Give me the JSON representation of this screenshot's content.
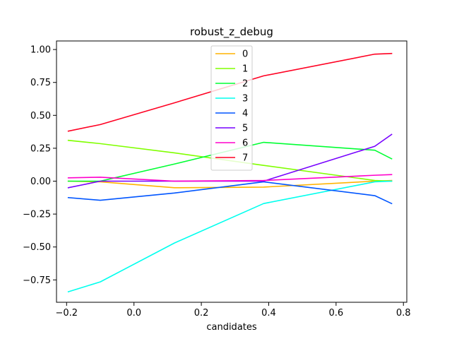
{
  "chart_data": {
    "type": "line",
    "title": "robust_z_debug",
    "xlabel": "candidates",
    "ylabel": "",
    "xlim": [
      -0.23,
      0.81
    ],
    "ylim": [
      -0.92,
      1.065
    ],
    "xticks": [
      -0.2,
      0.0,
      0.2,
      0.4,
      0.6,
      0.8
    ],
    "xtick_labels": [
      "−0.2",
      "0.0",
      "0.2",
      "0.4",
      "0.6",
      "0.8"
    ],
    "yticks": [
      -0.75,
      -0.5,
      -0.25,
      0.0,
      0.25,
      0.5,
      0.75,
      1.0
    ],
    "ytick_labels": [
      "−0.75",
      "−0.50",
      "−0.25",
      "0.00",
      "0.25",
      "0.50",
      "0.75",
      "1.00"
    ],
    "legend_position": "upper center",
    "x": [
      -0.195,
      -0.1,
      0.12,
      0.385,
      0.715,
      0.765
    ],
    "series": [
      {
        "name": "0",
        "color": "#ffb300",
        "values": [
          0.0,
          -0.005,
          -0.05,
          -0.045,
          0.0,
          0.005
        ]
      },
      {
        "name": "1",
        "color": "#80ff00",
        "values": [
          0.31,
          0.285,
          0.215,
          0.12,
          0.005,
          0.0
        ]
      },
      {
        "name": "2",
        "color": "#00ff33",
        "values": [
          0.0,
          0.0,
          0.13,
          0.295,
          0.235,
          0.17
        ]
      },
      {
        "name": "3",
        "color": "#00ffee",
        "values": [
          -0.84,
          -0.765,
          -0.47,
          -0.17,
          -0.005,
          0.0
        ]
      },
      {
        "name": "4",
        "color": "#0055ff",
        "values": [
          -0.125,
          -0.145,
          -0.09,
          -0.005,
          -0.11,
          -0.17
        ]
      },
      {
        "name": "5",
        "color": "#7700ff",
        "values": [
          -0.05,
          0.0,
          0.0,
          0.0,
          0.265,
          0.355
        ]
      },
      {
        "name": "6",
        "color": "#ff00cc",
        "values": [
          0.025,
          0.03,
          0.0,
          0.005,
          0.045,
          0.05
        ]
      },
      {
        "name": "7",
        "color": "#ff0022",
        "values": [
          0.38,
          0.43,
          0.595,
          0.8,
          0.965,
          0.97
        ]
      }
    ]
  }
}
